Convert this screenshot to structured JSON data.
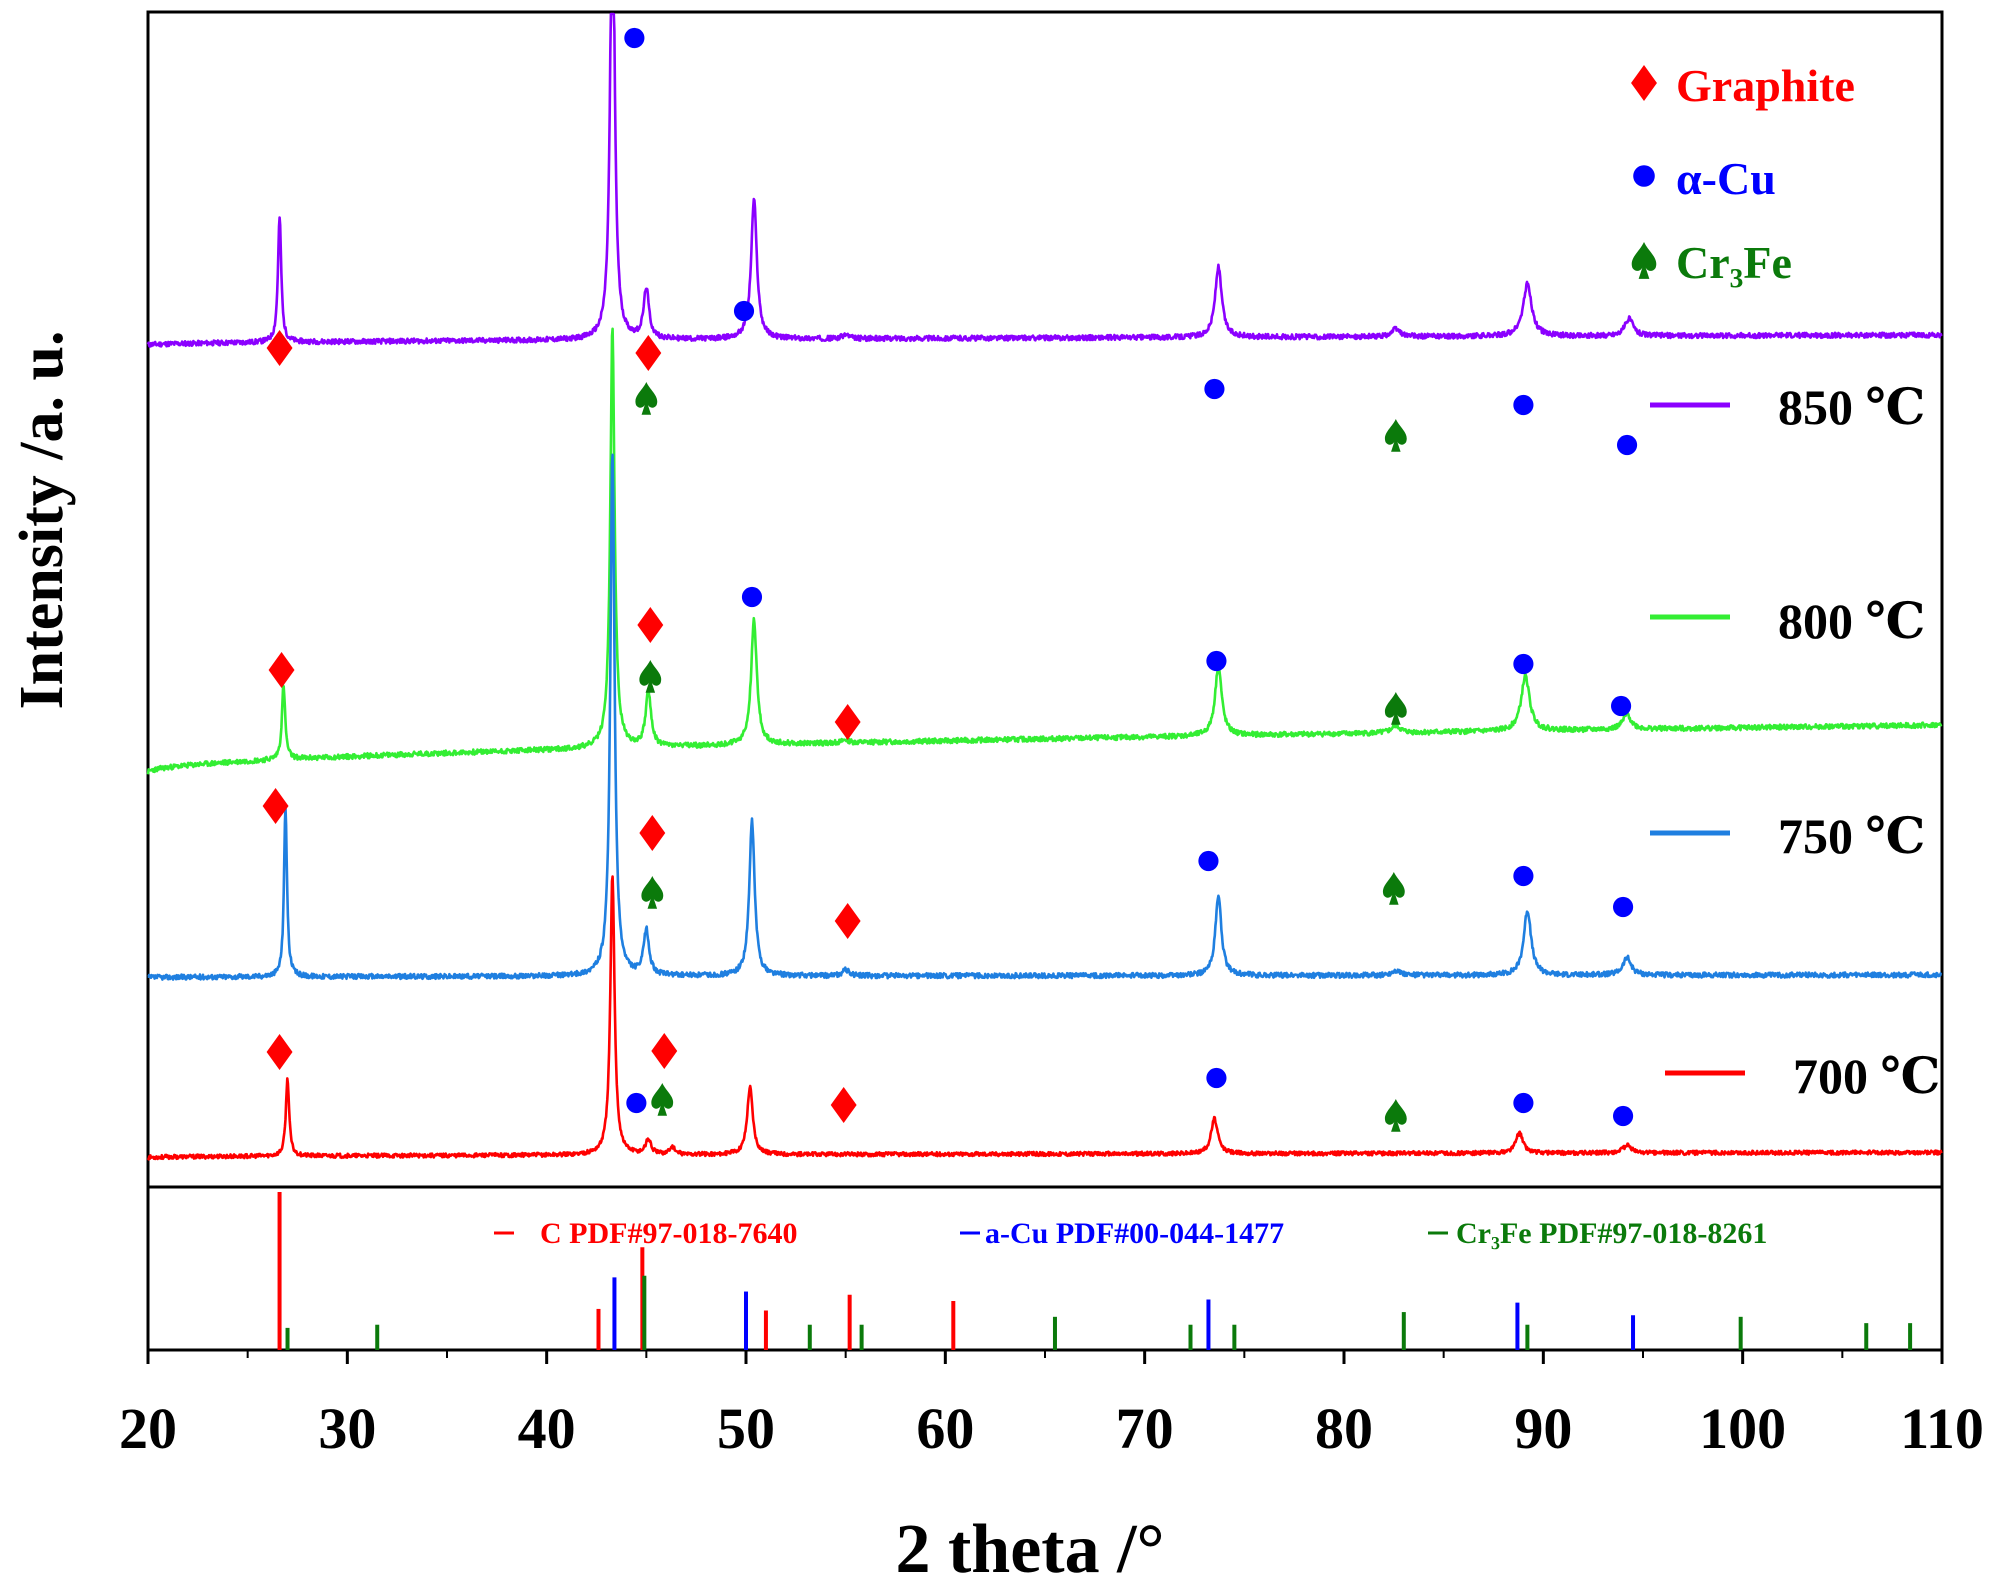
{
  "chart_data": {
    "type": "line",
    "xlabel": "2 theta /°",
    "ylabel": "Intensity /a. u.",
    "xlim": [
      20,
      110
    ],
    "xticks": [
      20,
      30,
      40,
      50,
      60,
      70,
      80,
      90,
      100,
      110
    ],
    "y_units": "arbitrary (offset stack)",
    "legend_phases": [
      {
        "marker": "diamond",
        "label": "Graphite",
        "color": "#ff0000"
      },
      {
        "marker": "circle",
        "label": "α-Cu",
        "color": "#0000ff"
      },
      {
        "marker": "spade",
        "label": "Cr₃Fe",
        "color": "#0b7a0b"
      }
    ],
    "series": [
      {
        "name": "850 ℃",
        "color": "#8b00ff",
        "baseline_start": 340,
        "baseline_end": 360,
        "noise": 5,
        "seed": 11,
        "peaks": [
          {
            "x": 26.6,
            "h": 250,
            "w": 0.1
          },
          {
            "x": 43.3,
            "h": 980,
            "w": 0.13
          },
          {
            "x": 45.0,
            "h": 100,
            "w": 0.16
          },
          {
            "x": 50.4,
            "h": 280,
            "w": 0.17
          },
          {
            "x": 55.0,
            "h": 8,
            "w": 0.2
          },
          {
            "x": 73.7,
            "h": 140,
            "w": 0.2
          },
          {
            "x": 82.6,
            "h": 15,
            "w": 0.25
          },
          {
            "x": 89.2,
            "h": 105,
            "w": 0.25
          },
          {
            "x": 94.3,
            "h": 35,
            "w": 0.25
          }
        ]
      },
      {
        "name": "800 ℃",
        "color": "#33ee33",
        "baseline_start": 55,
        "baseline_end": 150,
        "noise": 5,
        "seed": 23,
        "peaks": [
          {
            "x": 26.8,
            "h": 150,
            "w": 0.1
          },
          {
            "x": 43.3,
            "h": 840,
            "w": 0.13
          },
          {
            "x": 45.1,
            "h": 110,
            "w": 0.16
          },
          {
            "x": 50.4,
            "h": 250,
            "w": 0.17
          },
          {
            "x": 55.0,
            "h": 6,
            "w": 0.2
          },
          {
            "x": 73.7,
            "h": 140,
            "w": 0.2
          },
          {
            "x": 82.6,
            "h": 15,
            "w": 0.25
          },
          {
            "x": 89.1,
            "h": 110,
            "w": 0.25
          },
          {
            "x": 94.2,
            "h": 30,
            "w": 0.25
          }
        ]
      },
      {
        "name": "750 ℃",
        "color": "#1f7fe0",
        "baseline_start": 15,
        "baseline_end": 20,
        "noise": 5,
        "seed": 37,
        "peaks": [
          {
            "x": 26.9,
            "h": 340,
            "w": 0.09
          },
          {
            "x": 43.3,
            "h": 1050,
            "w": 0.13
          },
          {
            "x": 45.0,
            "h": 90,
            "w": 0.16
          },
          {
            "x": 50.3,
            "h": 310,
            "w": 0.16
          },
          {
            "x": 55.0,
            "h": 12,
            "w": 0.2
          },
          {
            "x": 73.7,
            "h": 160,
            "w": 0.18
          },
          {
            "x": 82.6,
            "h": 10,
            "w": 0.25
          },
          {
            "x": 89.2,
            "h": 130,
            "w": 0.22
          },
          {
            "x": 94.2,
            "h": 35,
            "w": 0.25
          }
        ]
      },
      {
        "name": "700 ℃",
        "color": "#ff0000",
        "baseline_start": 5,
        "baseline_end": 15,
        "noise": 4,
        "seed": 53,
        "peaks": [
          {
            "x": 27.0,
            "h": 155,
            "w": 0.1
          },
          {
            "x": 43.3,
            "h": 560,
            "w": 0.13
          },
          {
            "x": 45.1,
            "h": 30,
            "w": 0.16
          },
          {
            "x": 46.3,
            "h": 15,
            "w": 0.16
          },
          {
            "x": 50.2,
            "h": 135,
            "w": 0.17
          },
          {
            "x": 73.5,
            "h": 70,
            "w": 0.2
          },
          {
            "x": 88.8,
            "h": 40,
            "w": 0.22
          },
          {
            "x": 94.2,
            "h": 15,
            "w": 0.25
          }
        ]
      }
    ],
    "reference_patterns": {
      "legend": [
        {
          "label": "C  PDF#97-018-7640",
          "color": "#ff0000"
        },
        {
          "label": "a-Cu PDF#00-044-1477",
          "color": "#0000ff"
        },
        {
          "label": "Cr₃Fe PDF#97-018-8261",
          "color": "#0b7a0b"
        }
      ],
      "lines": [
        {
          "phase": "C",
          "x": 26.6,
          "rel": 1.0
        },
        {
          "phase": "C",
          "x": 42.6,
          "rel": 0.26
        },
        {
          "phase": "C",
          "x": 44.8,
          "rel": 0.65
        },
        {
          "phase": "C",
          "x": 51.0,
          "rel": 0.25
        },
        {
          "phase": "C",
          "x": 55.2,
          "rel": 0.35
        },
        {
          "phase": "C",
          "x": 60.4,
          "rel": 0.31
        },
        {
          "phase": "Cu",
          "x": 43.4,
          "rel": 0.46
        },
        {
          "phase": "Cu",
          "x": 50.0,
          "rel": 0.37
        },
        {
          "phase": "Cu",
          "x": 73.2,
          "rel": 0.32
        },
        {
          "phase": "Cu",
          "x": 88.7,
          "rel": 0.3
        },
        {
          "phase": "Cu",
          "x": 94.5,
          "rel": 0.22
        },
        {
          "phase": "Cr3Fe",
          "x": 27.0,
          "rel": 0.14
        },
        {
          "phase": "Cr3Fe",
          "x": 31.5,
          "rel": 0.16
        },
        {
          "phase": "Cr3Fe",
          "x": 44.9,
          "rel": 0.47
        },
        {
          "phase": "Cr3Fe",
          "x": 53.2,
          "rel": 0.16
        },
        {
          "phase": "Cr3Fe",
          "x": 55.8,
          "rel": 0.16
        },
        {
          "phase": "Cr3Fe",
          "x": 65.5,
          "rel": 0.21
        },
        {
          "phase": "Cr3Fe",
          "x": 72.3,
          "rel": 0.16
        },
        {
          "phase": "Cr3Fe",
          "x": 74.5,
          "rel": 0.16
        },
        {
          "phase": "Cr3Fe",
          "x": 83.0,
          "rel": 0.24
        },
        {
          "phase": "Cr3Fe",
          "x": 89.2,
          "rel": 0.16
        },
        {
          "phase": "Cr3Fe",
          "x": 99.9,
          "rel": 0.21
        },
        {
          "phase": "Cr3Fe",
          "x": 106.2,
          "rel": 0.17
        },
        {
          "phase": "Cr3Fe",
          "x": 108.4,
          "rel": 0.17
        }
      ]
    },
    "annotations": [
      {
        "series": "850 ℃",
        "marker": "diamond",
        "x": 26.6
      },
      {
        "series": "850 ℃",
        "marker": "circle",
        "x": 44.4
      },
      {
        "series": "850 ℃",
        "marker": "diamond",
        "x": 45.1
      },
      {
        "series": "850 ℃",
        "marker": "spade",
        "x": 45.0
      },
      {
        "series": "850 ℃",
        "marker": "circle",
        "x": 49.9
      },
      {
        "series": "850 ℃",
        "marker": "circle",
        "x": 73.5
      },
      {
        "series": "850 ℃",
        "marker": "spade",
        "x": 82.6
      },
      {
        "series": "850 ℃",
        "marker": "circle",
        "x": 89.0
      },
      {
        "series": "850 ℃",
        "marker": "circle",
        "x": 94.2
      },
      {
        "series": "800 ℃",
        "marker": "diamond",
        "x": 26.7
      },
      {
        "series": "800 ℃",
        "marker": "diamond",
        "x": 45.2
      },
      {
        "series": "800 ℃",
        "marker": "spade",
        "x": 45.2
      },
      {
        "series": "800 ℃",
        "marker": "circle",
        "x": 50.3
      },
      {
        "series": "800 ℃",
        "marker": "diamond",
        "x": 55.1
      },
      {
        "series": "800 ℃",
        "marker": "circle",
        "x": 73.6
      },
      {
        "series": "800 ℃",
        "marker": "spade",
        "x": 82.6
      },
      {
        "series": "800 ℃",
        "marker": "circle",
        "x": 89.0
      },
      {
        "series": "800 ℃",
        "marker": "circle",
        "x": 93.9
      },
      {
        "series": "750 ℃",
        "marker": "diamond",
        "x": 26.4
      },
      {
        "series": "750 ℃",
        "marker": "diamond",
        "x": 45.3
      },
      {
        "series": "750 ℃",
        "marker": "spade",
        "x": 45.3
      },
      {
        "series": "750 ℃",
        "marker": "diamond",
        "x": 55.1
      },
      {
        "series": "750 ℃",
        "marker": "circle",
        "x": 73.2
      },
      {
        "series": "750 ℃",
        "marker": "spade",
        "x": 82.5
      },
      {
        "series": "750 ℃",
        "marker": "circle",
        "x": 89.0
      },
      {
        "series": "750 ℃",
        "marker": "circle",
        "x": 94.0
      },
      {
        "series": "700 ℃",
        "marker": "diamond",
        "x": 26.6
      },
      {
        "series": "700 ℃",
        "marker": "diamond",
        "x": 45.9
      },
      {
        "series": "700 ℃",
        "marker": "circle",
        "x": 44.5
      },
      {
        "series": "700 ℃",
        "marker": "spade",
        "x": 45.8
      },
      {
        "series": "700 ℃",
        "marker": "diamond",
        "x": 54.9
      },
      {
        "series": "700 ℃",
        "marker": "circle",
        "x": 73.6
      },
      {
        "series": "700 ℃",
        "marker": "spade",
        "x": 82.6
      },
      {
        "series": "700 ℃",
        "marker": "circle",
        "x": 89.0
      },
      {
        "series": "700 ℃",
        "marker": "circle",
        "x": 94.0
      }
    ]
  }
}
